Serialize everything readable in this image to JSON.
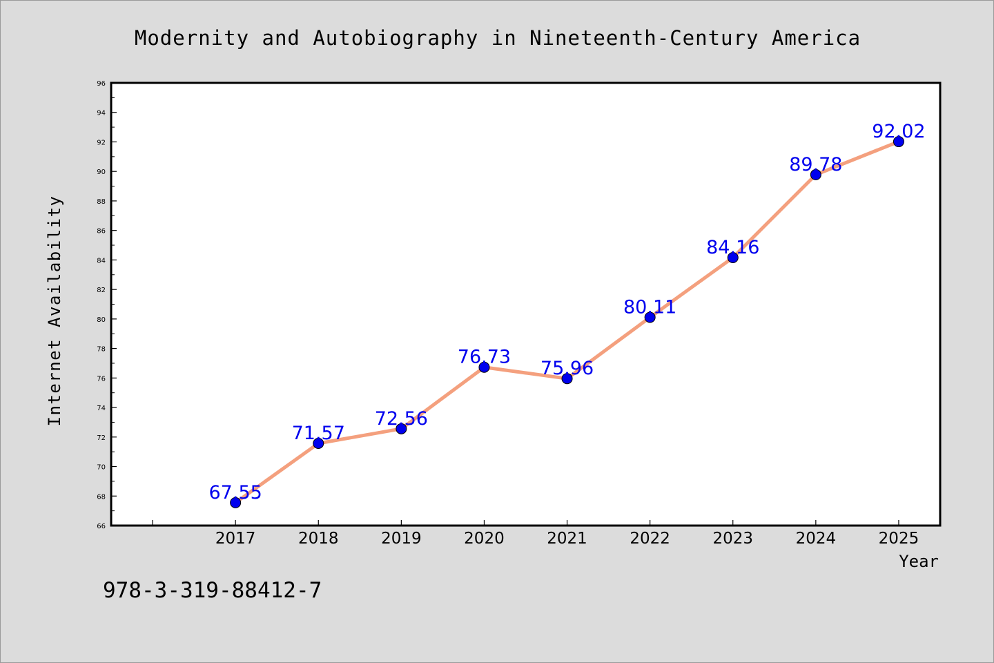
{
  "chart_data": {
    "type": "line",
    "title": "Modernity and Autobiography in Nineteenth-Century America",
    "xlabel": "Year",
    "ylabel": "Internet Availability",
    "categories": [
      "2017",
      "2018",
      "2019",
      "2020",
      "2021",
      "2022",
      "2023",
      "2024",
      "2025"
    ],
    "series": [
      {
        "values": [
          67.55,
          71.57,
          72.56,
          76.73,
          75.96,
          80.11,
          84.16,
          89.78,
          92.02
        ],
        "line_color": "#f4a07e",
        "marker_color": "#0000ee"
      }
    ],
    "data_labels": [
      "67.55",
      "71.57",
      "72.56",
      "76.73",
      "75.96",
      "80.11",
      "84.16",
      "89.78",
      "92.02"
    ],
    "ylim": [
      66,
      96
    ],
    "yticks": [
      "66",
      "68",
      "70",
      "72",
      "74",
      "76",
      "78",
      "80",
      "82",
      "84",
      "86",
      "88",
      "90",
      "92",
      "94",
      "96"
    ],
    "xlim": [
      2015.5,
      2025.5
    ],
    "grid": false,
    "legend": "none",
    "colors": {
      "background": "#dcdcdc",
      "plot_area": "#ffffff",
      "data_label": "#0000ee"
    }
  },
  "footer": {
    "isbn": "978-3-319-88412-7"
  }
}
